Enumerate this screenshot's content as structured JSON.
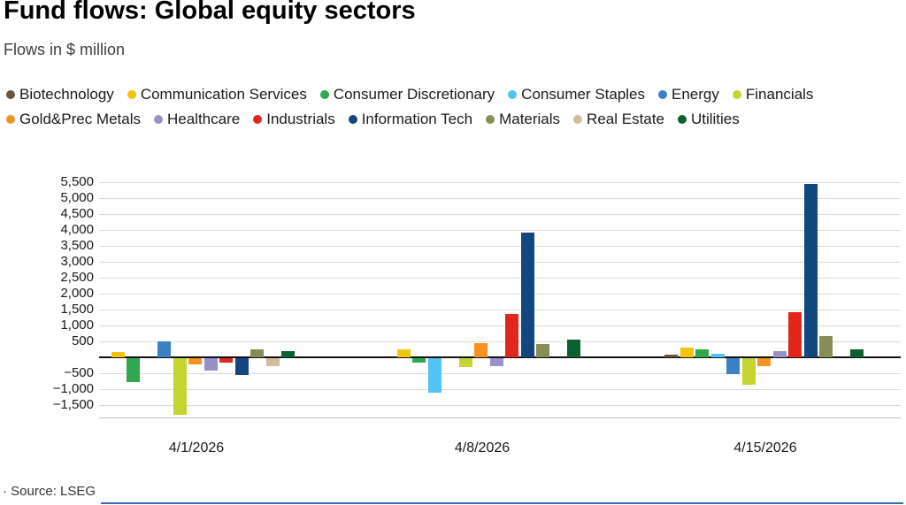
{
  "header": {
    "title": "Fund flows: Global equity sectors",
    "subtitle": "Flows in $ million"
  },
  "footer": {
    "source_label": "· Source: LSEG"
  },
  "colors": {
    "bottom_accent_line": "#336fad",
    "gridline": "#dadada",
    "zero_axis": "#111111"
  },
  "chart_data": {
    "type": "bar",
    "title": "Fund flows: Global equity sectors",
    "subtitle": "Flows in $ million",
    "source": "Source: LSEG",
    "categories": [
      "4/1/2026",
      "4/8/2026",
      "4/15/2026"
    ],
    "series": [
      {
        "name": "Biotechnology",
        "color": "#6a543f",
        "values": [
          0,
          0,
          80
        ]
      },
      {
        "name": "Communication Services",
        "color": "#f2c40d",
        "values": [
          150,
          250,
          300
        ]
      },
      {
        "name": "Consumer Discretionary",
        "color": "#2fa84f",
        "values": [
          -750,
          -150,
          250
        ]
      },
      {
        "name": "Consumer Staples",
        "color": "#4fc4f5",
        "values": [
          0,
          -1100,
          100
        ]
      },
      {
        "name": "Energy",
        "color": "#3a80c4",
        "values": [
          500,
          0,
          -500
        ]
      },
      {
        "name": "Financials",
        "color": "#c5d430",
        "values": [
          -1800,
          -300,
          -850
        ]
      },
      {
        "name": "Gold&Prec Metals",
        "color": "#f59322",
        "values": [
          -200,
          450,
          -250
        ]
      },
      {
        "name": "Healthcare",
        "color": "#998fc9",
        "values": [
          -400,
          -250,
          200
        ]
      },
      {
        "name": "Industrials",
        "color": "#e0261d",
        "values": [
          -150,
          1350,
          1400
        ]
      },
      {
        "name": "Information Tech",
        "color": "#12467f",
        "values": [
          -550,
          3900,
          5450
        ]
      },
      {
        "name": "Materials",
        "color": "#868e55",
        "values": [
          250,
          400,
          650
        ]
      },
      {
        "name": "Real Estate",
        "color": "#d5bb9e",
        "values": [
          -250,
          0,
          0
        ]
      },
      {
        "name": "Utilities",
        "color": "#0a6230",
        "values": [
          200,
          550,
          250
        ]
      }
    ],
    "ylim": [
      -1500,
      5500
    ],
    "ytick_step": 500,
    "yticks": [
      {
        "v": 5500,
        "label": "5,500"
      },
      {
        "v": 5000,
        "label": "5,000"
      },
      {
        "v": 4500,
        "label": "4,500"
      },
      {
        "v": 4000,
        "label": "4,000"
      },
      {
        "v": 3500,
        "label": "3,500"
      },
      {
        "v": 3000,
        "label": "3,000"
      },
      {
        "v": 2500,
        "label": "2,500"
      },
      {
        "v": 2000,
        "label": "2,000"
      },
      {
        "v": 1500,
        "label": "1,500"
      },
      {
        "v": 1000,
        "label": "1,000"
      },
      {
        "v": 500,
        "label": "500"
      },
      {
        "v": -500,
        "label": "−500"
      },
      {
        "v": -1000,
        "label": "−1,000"
      },
      {
        "v": -1500,
        "label": "−1,500"
      },
      {
        "v": -1500,
        "label": "−1,500",
        "skip": true
      }
    ],
    "grid": true,
    "legend_position": "top",
    "legend_row_break": 6,
    "xlabel": "",
    "ylabel": ""
  }
}
